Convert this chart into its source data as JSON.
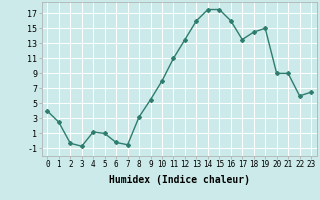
{
  "x": [
    0,
    1,
    2,
    3,
    4,
    5,
    6,
    7,
    8,
    9,
    10,
    11,
    12,
    13,
    14,
    15,
    16,
    17,
    18,
    19,
    20,
    21,
    22,
    23
  ],
  "y": [
    4.0,
    2.5,
    -0.3,
    -0.7,
    1.2,
    1.0,
    -0.2,
    -0.5,
    3.2,
    5.5,
    8.0,
    11.0,
    13.5,
    16.0,
    17.5,
    17.5,
    16.0,
    13.5,
    14.5,
    15.0,
    9.0,
    9.0,
    6.0,
    6.5
  ],
  "line_color": "#2e7d6e",
  "marker": "D",
  "marker_size": 2.0,
  "line_width": 1.0,
  "bg_color": "#cceaea",
  "grid_color": "#ffffff",
  "xlabel": "Humidex (Indice chaleur)",
  "xlabel_fontsize": 7,
  "xlim": [
    -0.5,
    23.5
  ],
  "ylim": [
    -2.0,
    18.5
  ],
  "yticks": [
    -1,
    1,
    3,
    5,
    7,
    9,
    11,
    13,
    15,
    17
  ],
  "xticks": [
    0,
    1,
    2,
    3,
    4,
    5,
    6,
    7,
    8,
    9,
    10,
    11,
    12,
    13,
    14,
    15,
    16,
    17,
    18,
    19,
    20,
    21,
    22,
    23
  ],
  "xtick_labels": [
    "0",
    "1",
    "2",
    "3",
    "4",
    "5",
    "6",
    "7",
    "8",
    "9",
    "10",
    "11",
    "12",
    "13",
    "14",
    "15",
    "16",
    "17",
    "18",
    "19",
    "20",
    "21",
    "22",
    "23"
  ],
  "tick_fontsize": 5.5,
  "ytick_fontsize": 6.0
}
